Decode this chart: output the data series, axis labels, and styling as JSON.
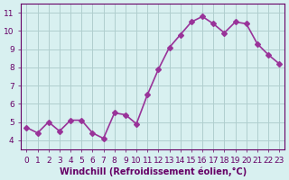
{
  "x": [
    0,
    1,
    2,
    3,
    4,
    5,
    6,
    7,
    8,
    9,
    10,
    11,
    12,
    13,
    14,
    15,
    16,
    17,
    18,
    19,
    20,
    21,
    22,
    23
  ],
  "y": [
    4.7,
    4.4,
    5.0,
    4.5,
    5.1,
    5.1,
    4.4,
    4.1,
    5.5,
    5.4,
    4.9,
    6.5,
    7.9,
    9.1,
    9.8,
    10.5,
    10.8,
    10.4,
    9.9,
    10.5,
    10.4,
    9.3,
    8.7,
    8.2
  ],
  "line_color": "#993399",
  "marker": "D",
  "markersize": 3,
  "linewidth": 1.2,
  "bg_color": "#d8f0f0",
  "grid_color": "#b0cece",
  "xlabel": "Windchill (Refroidissement éolien,°C)",
  "xlim": [
    -0.5,
    23.5
  ],
  "ylim": [
    3.5,
    11.5
  ],
  "yticks": [
    4,
    5,
    6,
    7,
    8,
    9,
    10,
    11
  ],
  "xticks": [
    0,
    1,
    2,
    3,
    4,
    5,
    6,
    7,
    8,
    9,
    10,
    11,
    12,
    13,
    14,
    15,
    16,
    17,
    18,
    19,
    20,
    21,
    22,
    23
  ],
  "xlabel_fontsize": 7,
  "tick_fontsize": 6.5,
  "axis_color": "#660066",
  "tick_color": "#660066"
}
